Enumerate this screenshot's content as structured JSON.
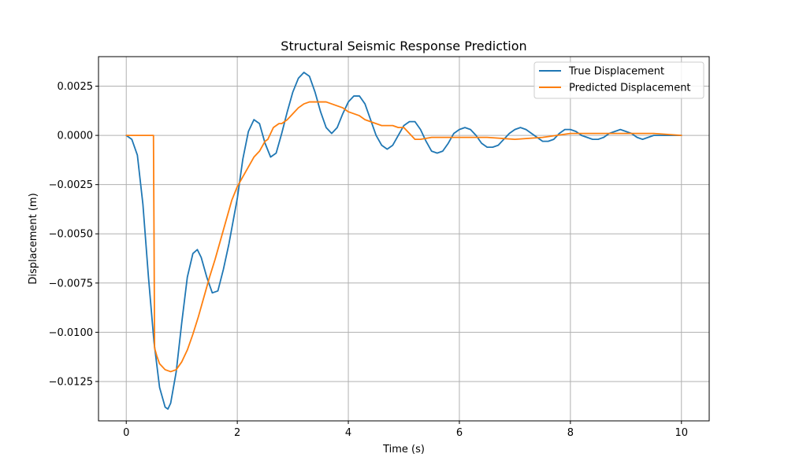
{
  "chart_data": {
    "type": "line",
    "title": "Structural Seismic Response Prediction",
    "xlabel": "Time (s)",
    "ylabel": "Displacement (m)",
    "xlim": [
      -0.5,
      10.5
    ],
    "ylim": [
      -0.0145,
      0.004
    ],
    "xticks": [
      0,
      2,
      4,
      6,
      8,
      10
    ],
    "xtick_labels": [
      "0",
      "2",
      "4",
      "6",
      "8",
      "10"
    ],
    "yticks": [
      -0.0125,
      -0.01,
      -0.0075,
      -0.005,
      -0.0025,
      0.0,
      0.0025
    ],
    "ytick_labels": [
      "−0.0125",
      "−0.0100",
      "−0.0075",
      "−0.0050",
      "−0.0025",
      "0.0000",
      "0.0025"
    ],
    "grid": true,
    "legend_position": "top-right",
    "series": [
      {
        "name": "True Displacement",
        "color": "#1f77b4",
        "x": [
          0,
          0.1,
          0.2,
          0.3,
          0.4,
          0.5,
          0.6,
          0.7,
          0.75,
          0.8,
          0.9,
          1.0,
          1.1,
          1.2,
          1.28,
          1.35,
          1.45,
          1.55,
          1.65,
          1.75,
          1.85,
          2.0,
          2.1,
          2.2,
          2.3,
          2.4,
          2.5,
          2.6,
          2.7,
          2.8,
          2.9,
          3.0,
          3.1,
          3.2,
          3.3,
          3.4,
          3.5,
          3.6,
          3.7,
          3.8,
          3.9,
          4.0,
          4.1,
          4.2,
          4.3,
          4.4,
          4.5,
          4.6,
          4.7,
          4.8,
          4.9,
          5.0,
          5.1,
          5.2,
          5.3,
          5.4,
          5.5,
          5.6,
          5.7,
          5.8,
          5.9,
          6.0,
          6.1,
          6.2,
          6.3,
          6.4,
          6.5,
          6.6,
          6.7,
          6.8,
          6.9,
          7.0,
          7.1,
          7.2,
          7.3,
          7.4,
          7.5,
          7.6,
          7.7,
          7.8,
          7.9,
          8.0,
          8.1,
          8.2,
          8.3,
          8.4,
          8.5,
          8.6,
          8.7,
          8.8,
          8.9,
          9.0,
          9.1,
          9.2,
          9.3,
          9.4,
          9.5,
          9.6,
          9.7,
          9.8,
          9.9,
          10.0
        ],
        "values": [
          0.0,
          -0.0002,
          -0.001,
          -0.0035,
          -0.0072,
          -0.0105,
          -0.0128,
          -0.0138,
          -0.0139,
          -0.0136,
          -0.012,
          -0.0095,
          -0.0072,
          -0.006,
          -0.0058,
          -0.0062,
          -0.0072,
          -0.008,
          -0.0079,
          -0.0068,
          -0.0055,
          -0.0032,
          -0.0012,
          0.0002,
          0.0008,
          0.0006,
          -0.0004,
          -0.0011,
          -0.0009,
          0.0001,
          0.0012,
          0.0022,
          0.0029,
          0.0032,
          0.003,
          0.0022,
          0.0012,
          0.0004,
          0.0001,
          0.0004,
          0.0011,
          0.0017,
          0.002,
          0.002,
          0.0016,
          0.0008,
          0.0,
          -0.0005,
          -0.0007,
          -0.0005,
          0.0,
          0.0005,
          0.0007,
          0.0007,
          0.0003,
          -0.0003,
          -0.0008,
          -0.0009,
          -0.0008,
          -0.0004,
          0.0001,
          0.0003,
          0.0004,
          0.0003,
          0.0,
          -0.0004,
          -0.0006,
          -0.0006,
          -0.0005,
          -0.0002,
          0.0001,
          0.0003,
          0.0004,
          0.0003,
          0.0001,
          -0.0001,
          -0.0003,
          -0.0003,
          -0.0002,
          0.0001,
          0.0003,
          0.0003,
          0.0002,
          0.0,
          -0.0001,
          -0.0002,
          -0.0002,
          -0.0001,
          0.0001,
          0.0002,
          0.0003,
          0.0002,
          0.0001,
          -0.0001,
          -0.0002,
          -0.0001,
          0.0,
          0.0,
          0.0,
          0.0,
          0.0,
          0.0
        ]
      },
      {
        "name": "Predicted Displacement",
        "color": "#ff7f0e",
        "x": [
          0,
          0.2,
          0.4,
          0.49,
          0.5,
          0.51,
          0.55,
          0.6,
          0.7,
          0.8,
          0.9,
          1.0,
          1.1,
          1.2,
          1.3,
          1.4,
          1.5,
          1.6,
          1.7,
          1.8,
          1.9,
          2.0,
          2.1,
          2.2,
          2.3,
          2.4,
          2.5,
          2.55,
          2.6,
          2.65,
          2.7,
          2.75,
          2.8,
          2.9,
          3.0,
          3.1,
          3.2,
          3.3,
          3.4,
          3.5,
          3.6,
          3.7,
          3.8,
          3.9,
          4.0,
          4.1,
          4.2,
          4.3,
          4.4,
          4.5,
          4.6,
          4.7,
          4.8,
          4.9,
          5.0,
          5.1,
          5.2,
          5.3,
          5.5,
          6.0,
          6.5,
          7.0,
          7.5,
          8.0,
          8.5,
          9.0,
          9.5,
          10.0
        ],
        "values": [
          0.0,
          0.0,
          0.0,
          0.0,
          -0.005,
          -0.0108,
          -0.0112,
          -0.0116,
          -0.0119,
          -0.012,
          -0.0119,
          -0.0115,
          -0.0109,
          -0.0101,
          -0.0092,
          -0.0082,
          -0.0072,
          -0.0063,
          -0.0053,
          -0.0043,
          -0.0033,
          -0.0026,
          -0.0021,
          -0.0016,
          -0.0011,
          -0.0008,
          -0.0003,
          -0.0002,
          0.0001,
          0.0004,
          0.0005,
          0.0006,
          0.0006,
          0.0008,
          0.0011,
          0.0014,
          0.0016,
          0.0017,
          0.0017,
          0.0017,
          0.0017,
          0.0016,
          0.0015,
          0.0014,
          0.0012,
          0.0011,
          0.001,
          0.0008,
          0.0007,
          0.0006,
          0.0005,
          0.0005,
          0.0005,
          0.0004,
          0.0004,
          0.0001,
          -0.0002,
          -0.0002,
          -0.0001,
          -0.0001,
          -0.0001,
          -0.0002,
          -0.0001,
          0.0001,
          0.0001,
          0.0001,
          0.0001,
          0.0
        ]
      }
    ]
  }
}
